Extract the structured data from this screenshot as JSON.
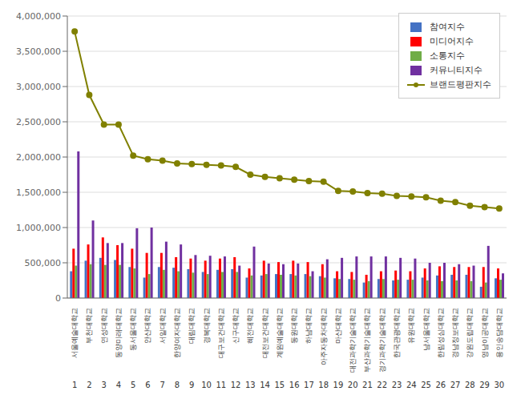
{
  "chart_data": {
    "type": "bar",
    "categories": [
      "서울예술대학교",
      "부천대학교",
      "연성대학교",
      "동양미래대학교",
      "동서울대학교",
      "안산대학교",
      "서일대학교",
      "한양여자대학교",
      "대림대학교",
      "경복대학교",
      "대구보건대학교",
      "신구대학교",
      "혜전대학교",
      "대전보건대학교",
      "계원예술대학교",
      "동원대학교",
      "하남대학교",
      "아주자동차대학교",
      "마산대학교",
      "대전과학기술대학교",
      "부산과학기술대학교",
      "경기과학기술대학교",
      "한국관광대학교",
      "유원대학교",
      "남서울대학교",
      "한림성심대학교",
      "경남정보대학교",
      "강원도립대학교",
      "영남이공대학교",
      "용인송담대학교"
    ],
    "series": [
      {
        "name": "참여지수",
        "type": "bar",
        "color": "#4472C4",
        "values": [
          380000,
          530000,
          570000,
          540000,
          440000,
          290000,
          440000,
          430000,
          410000,
          370000,
          400000,
          410000,
          290000,
          320000,
          340000,
          340000,
          340000,
          310000,
          280000,
          270000,
          220000,
          270000,
          250000,
          260000,
          290000,
          320000,
          330000,
          330000,
          160000,
          280000
        ]
      },
      {
        "name": "미디어지수",
        "type": "bar",
        "color": "#FF0000",
        "values": [
          700000,
          760000,
          860000,
          750000,
          700000,
          640000,
          640000,
          580000,
          560000,
          530000,
          560000,
          580000,
          420000,
          530000,
          510000,
          530000,
          510000,
          480000,
          380000,
          370000,
          330000,
          380000,
          390000,
          380000,
          420000,
          450000,
          440000,
          440000,
          440000,
          420000
        ]
      },
      {
        "name": "소통지수",
        "type": "bar",
        "color": "#70AD47",
        "values": [
          460000,
          480000,
          470000,
          470000,
          420000,
          340000,
          400000,
          380000,
          360000,
          340000,
          370000,
          370000,
          320000,
          340000,
          330000,
          320000,
          310000,
          290000,
          270000,
          260000,
          240000,
          270000,
          260000,
          260000,
          250000,
          240000,
          250000,
          240000,
          220000,
          260000
        ]
      },
      {
        "name": "커뮤니티지수",
        "type": "bar",
        "color": "#7030A0",
        "values": [
          2080000,
          1100000,
          780000,
          780000,
          990000,
          1000000,
          800000,
          760000,
          610000,
          600000,
          590000,
          460000,
          730000,
          490000,
          480000,
          490000,
          380000,
          550000,
          570000,
          590000,
          590000,
          590000,
          570000,
          560000,
          500000,
          500000,
          480000,
          460000,
          740000,
          350000
        ]
      },
      {
        "name": "브랜드평판지수",
        "type": "line",
        "color": "#808000",
        "marker": "circle",
        "values": [
          3780000,
          2880000,
          2460000,
          2460000,
          2020000,
          1970000,
          1950000,
          1910000,
          1900000,
          1890000,
          1880000,
          1860000,
          1750000,
          1720000,
          1700000,
          1680000,
          1660000,
          1650000,
          1520000,
          1510000,
          1490000,
          1480000,
          1450000,
          1440000,
          1430000,
          1380000,
          1360000,
          1310000,
          1290000,
          1270000
        ]
      }
    ],
    "annotations": [
      {
        "text": "1",
        "x": "서울예술대학교"
      },
      {
        "text": "2",
        "x": "부천대학교"
      },
      {
        "text": "3",
        "x": "연성대학교"
      },
      {
        "text": "4",
        "x": "동양미래대학교"
      },
      {
        "text": "5",
        "x": "동서울대학교"
      },
      {
        "text": "6",
        "x": "안산대학교"
      },
      {
        "text": "7",
        "x": "서일대학교"
      },
      {
        "text": "8",
        "x": "한양여자대학교"
      },
      {
        "text": "9",
        "x": "대림대학교"
      },
      {
        "text": "10",
        "x": "경복대학교"
      },
      {
        "text": "11",
        "x": "대구보건대학교"
      },
      {
        "text": "12",
        "x": "신구대학교"
      },
      {
        "text": "13",
        "x": "혜전대학교"
      },
      {
        "text": "14",
        "x": "대전보건대학교"
      },
      {
        "text": "15",
        "x": "계원예술대학교"
      },
      {
        "text": "16",
        "x": "동원대학교"
      },
      {
        "text": "17",
        "x": "하남대학교"
      },
      {
        "text": "18",
        "x": "아주자동차대학교"
      },
      {
        "text": "19",
        "x": "마산대학교"
      },
      {
        "text": "20",
        "x": "대전과학기술대학교"
      },
      {
        "text": "21",
        "x": "부산과학기술대학교"
      },
      {
        "text": "22",
        "x": "경기과학기술대학교"
      },
      {
        "text": "23",
        "x": "한국관광대학교"
      },
      {
        "text": "24",
        "x": "유원대학교"
      },
      {
        "text": "25",
        "x": "남서울대학교"
      },
      {
        "text": "26",
        "x": "한림성심대학교"
      },
      {
        "text": "27",
        "x": "경남정보대학교"
      },
      {
        "text": "28",
        "x": "강원도립대학교"
      },
      {
        "text": "29",
        "x": "영남이공대학교"
      },
      {
        "text": "30",
        "x": "용인송담대학교"
      }
    ],
    "ylim": [
      0,
      4000000
    ],
    "yticks": [
      0,
      {
        "value": 500000,
        "label": "500,000"
      },
      {
        "value": 1000000,
        "label": "1,000,000"
      },
      {
        "value": 1500000,
        "label": "1,500,000"
      },
      {
        "value": 2000000,
        "label": "2,000,000"
      },
      {
        "value": 2500000,
        "label": "2,500,000"
      },
      {
        "value": 3000000,
        "label": "3,000,000"
      },
      {
        "value": 3500000,
        "label": "3,500,000"
      },
      {
        "value": 4000000,
        "label": "4,000,000"
      }
    ],
    "grid": true,
    "legend": "upper right"
  }
}
